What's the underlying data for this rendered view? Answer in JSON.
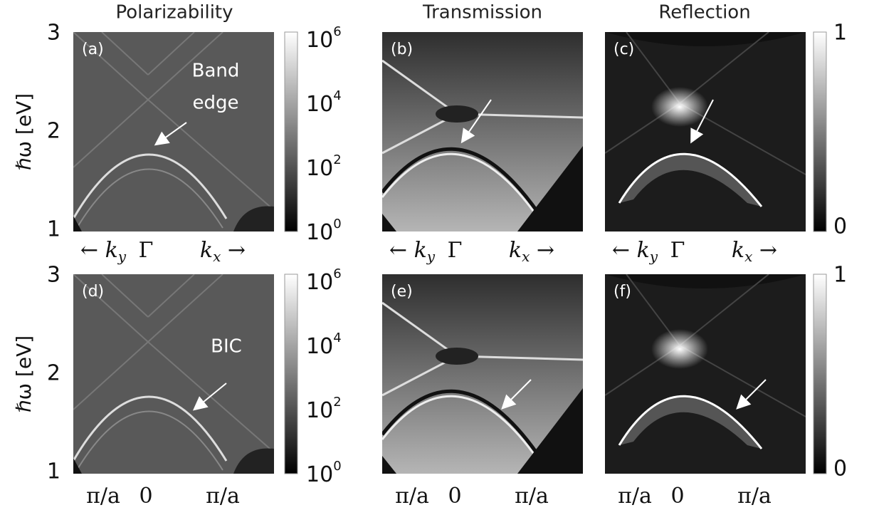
{
  "columns": [
    "Polarizability",
    "Transmission",
    "Reflection"
  ],
  "y_axis_label": "ℏω [eV]",
  "y_ticks": [
    "3",
    "2",
    "1"
  ],
  "rows": [
    {
      "panels": [
        "(a)",
        "(b)",
        "(c)"
      ],
      "x_labels": [
        {
          "text": "← k",
          "sub": "y"
        },
        {
          "text": "Γ"
        },
        {
          "text": "k",
          "sub": "x",
          "suffix": " →"
        }
      ]
    },
    {
      "panels": [
        "(d)",
        "(e)",
        "(f)"
      ],
      "x_labels": [
        {
          "text": "π/a"
        },
        {
          "text": "0"
        },
        {
          "text": "π/a"
        }
      ]
    }
  ],
  "log_colorbar": [
    {
      "base": "10",
      "exp": "6"
    },
    {
      "base": "10",
      "exp": "4"
    },
    {
      "base": "10",
      "exp": "2"
    },
    {
      "base": "10",
      "exp": "0"
    }
  ],
  "linear_colorbar": [
    "1",
    "0"
  ],
  "annotations": {
    "band_edge": [
      "Band",
      "edge"
    ],
    "bic": "BIC"
  }
}
